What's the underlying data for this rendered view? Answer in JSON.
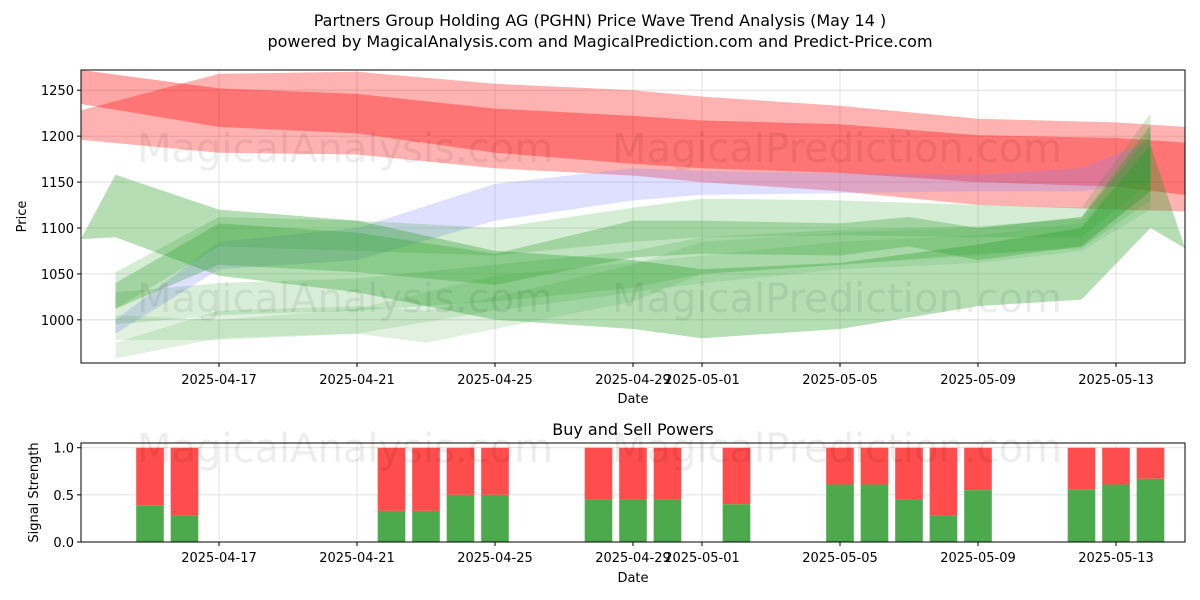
{
  "title_line1": "Partners Group Holding AG (PGHN) Price Wave Trend Analysis (May 14 )",
  "title_line2": "powered by MagicalAnalysis.com and MagicalPrediction.com and Predict-Price.com",
  "watermarks": [
    "MagicalAnalysis.com",
    "MagicalPrediction.com"
  ],
  "colors": {
    "red": "#ff0000",
    "green": "#2ca02c",
    "blue": "#8080ff",
    "buy": "#4caa4c",
    "sell": "#ff4c4c",
    "grid": "#d9d9d9"
  },
  "chart_data": [
    {
      "type": "area",
      "name": "price-wave-chart",
      "title": "",
      "xlabel": "Date",
      "ylabel": "Price",
      "xlim": [
        "2025-04-13",
        "2025-05-15"
      ],
      "ylim": [
        953,
        1272
      ],
      "x_ticks": [
        "2025-04-17",
        "2025-04-21",
        "2025-04-25",
        "2025-04-29",
        "2025-05-01",
        "2025-05-05",
        "2025-05-09",
        "2025-05-13"
      ],
      "y_ticks": [
        1000,
        1050,
        1100,
        1150,
        1200,
        1250
      ],
      "grid": true,
      "bands": [
        {
          "color": "red",
          "opacity": 0.3,
          "points": [
            [
              "2025-04-13",
              1228,
              1196
            ],
            [
              "2025-04-17",
              1268,
              1182
            ],
            [
              "2025-04-21",
              1270,
              1180
            ],
            [
              "2025-04-25",
              1257,
              1165
            ],
            [
              "2025-04-29",
              1250,
              1157
            ],
            [
              "2025-05-01",
              1243,
              1150
            ],
            [
              "2025-05-05",
              1233,
              1140
            ],
            [
              "2025-05-09",
              1219,
              1125
            ],
            [
              "2025-05-13",
              1215,
              1120
            ],
            [
              "2025-05-15",
              1210,
              1118
            ]
          ]
        },
        {
          "color": "red",
          "opacity": 0.35,
          "points": [
            [
              "2025-04-13",
              1272,
              1235
            ],
            [
              "2025-04-17",
              1252,
              1210
            ],
            [
              "2025-04-21",
              1246,
              1203
            ],
            [
              "2025-04-25",
              1230,
              1182
            ],
            [
              "2025-04-29",
              1222,
              1170
            ],
            [
              "2025-05-01",
              1217,
              1165
            ],
            [
              "2025-05-05",
              1213,
              1160
            ],
            [
              "2025-05-09",
              1201,
              1150
            ],
            [
              "2025-05-13",
              1198,
              1145
            ],
            [
              "2025-05-15",
              1193,
              1136
            ]
          ]
        },
        {
          "color": "blue",
          "opacity": 0.25,
          "points": [
            [
              "2025-04-14",
              1000,
              985
            ],
            [
              "2025-04-17",
              1085,
              1055
            ],
            [
              "2025-04-21",
              1100,
              1065
            ],
            [
              "2025-04-25",
              1148,
              1108
            ],
            [
              "2025-04-29",
              1165,
              1130
            ],
            [
              "2025-05-01",
              1162,
              1136
            ],
            [
              "2025-05-05",
              1160,
              1138
            ],
            [
              "2025-05-09",
              1158,
              1140
            ],
            [
              "2025-05-12",
              1165,
              1140
            ],
            [
              "2025-05-14",
              1195,
              1150
            ]
          ]
        },
        {
          "color": "green",
          "opacity": 0.35,
          "points": [
            [
              "2025-04-13",
              1088,
              1088
            ],
            [
              "2025-04-14",
              1158,
              1090
            ],
            [
              "2025-04-17",
              1120,
              1048
            ],
            [
              "2025-04-21",
              1108,
              1030
            ],
            [
              "2025-04-25",
              1075,
              1000
            ],
            [
              "2025-04-29",
              1065,
              990
            ],
            [
              "2025-05-01",
              1055,
              980
            ],
            [
              "2025-05-05",
              1062,
              990
            ],
            [
              "2025-05-09",
              1082,
              1015
            ],
            [
              "2025-05-12",
              1100,
              1022
            ],
            [
              "2025-05-14",
              1190,
              1100
            ],
            [
              "2025-05-15",
              1078,
              1078
            ]
          ]
        },
        {
          "color": "green",
          "opacity": 0.3,
          "points": [
            [
              "2025-04-14",
              1040,
              1012
            ],
            [
              "2025-04-17",
              1105,
              1060
            ],
            [
              "2025-04-21",
              1095,
              1052
            ],
            [
              "2025-04-25",
              1072,
              1038
            ],
            [
              "2025-04-29",
              1108,
              1068
            ],
            [
              "2025-05-01",
              1108,
              1072
            ],
            [
              "2025-05-05",
              1105,
              1070
            ],
            [
              "2025-05-07",
              1112,
              1080
            ],
            [
              "2025-05-09",
              1100,
              1065
            ],
            [
              "2025-05-12",
              1112,
              1080
            ],
            [
              "2025-05-14",
              1212,
              1140
            ]
          ]
        },
        {
          "color": "green",
          "opacity": 0.2,
          "points": [
            [
              "2025-04-14",
              1052,
              1012
            ],
            [
              "2025-04-17",
              1112,
              1080
            ],
            [
              "2025-04-21",
              1108,
              1075
            ],
            [
              "2025-04-25",
              1100,
              1070
            ],
            [
              "2025-04-29",
              1122,
              1085
            ],
            [
              "2025-05-01",
              1132,
              1090
            ],
            [
              "2025-05-05",
              1130,
              1092
            ],
            [
              "2025-05-09",
              1125,
              1090
            ],
            [
              "2025-05-12",
              1122,
              1090
            ],
            [
              "2025-05-14",
              1225,
              1150
            ]
          ]
        },
        {
          "color": "green",
          "opacity": 0.18,
          "points": [
            [
              "2025-04-14",
              1030,
              995
            ],
            [
              "2025-04-17",
              1040,
              1005
            ],
            [
              "2025-04-21",
              1045,
              1010
            ],
            [
              "2025-04-25",
              1060,
              1020
            ],
            [
              "2025-04-29",
              1075,
              1035
            ],
            [
              "2025-05-01",
              1090,
              1050
            ],
            [
              "2025-05-05",
              1098,
              1060
            ],
            [
              "2025-05-09",
              1102,
              1072
            ],
            [
              "2025-05-12",
              1110,
              1078
            ],
            [
              "2025-05-14",
              1205,
              1130
            ]
          ]
        },
        {
          "color": "green",
          "opacity": 0.15,
          "points": [
            [
              "2025-04-14",
              975,
              958
            ],
            [
              "2025-04-17",
              1010,
              980
            ],
            [
              "2025-04-21",
              1015,
              985
            ],
            [
              "2025-04-23",
              1010,
              975
            ],
            [
              "2025-04-25",
              1025,
              990
            ],
            [
              "2025-04-29",
              1060,
              1020
            ],
            [
              "2025-05-01",
              1085,
              1050
            ],
            [
              "2025-05-05",
              1095,
              1060
            ],
            [
              "2025-05-09",
              1100,
              1070
            ],
            [
              "2025-05-12",
              1112,
              1080
            ],
            [
              "2025-05-14",
              1200,
              1140
            ]
          ]
        },
        {
          "color": "green",
          "opacity": 0.15,
          "points": [
            [
              "2025-04-14",
              1005,
              978
            ],
            [
              "2025-04-17",
              1000,
              978
            ],
            [
              "2025-04-21",
              1012,
              985
            ],
            [
              "2025-04-25",
              1048,
              1010
            ],
            [
              "2025-04-29",
              1062,
              1030
            ],
            [
              "2025-05-01",
              1070,
              1040
            ],
            [
              "2025-05-05",
              1085,
              1055
            ],
            [
              "2025-05-09",
              1092,
              1062
            ],
            [
              "2025-05-12",
              1105,
              1075
            ],
            [
              "2025-05-14",
              1190,
              1120
            ]
          ]
        }
      ]
    },
    {
      "type": "bar",
      "name": "buy-sell-chart",
      "title": "Buy and Sell Powers",
      "xlabel": "Date",
      "ylabel": "Signal Strength",
      "xlim": [
        "2025-04-13",
        "2025-05-15"
      ],
      "ylim": [
        0,
        1.05
      ],
      "x_ticks": [
        "2025-04-17",
        "2025-04-21",
        "2025-04-25",
        "2025-04-29",
        "2025-05-01",
        "2025-05-05",
        "2025-05-09",
        "2025-05-13"
      ],
      "y_ticks": [
        "0.0",
        "0.5",
        "1.0"
      ],
      "grid": true,
      "series": [
        {
          "name": "Buy",
          "color": "buy"
        },
        {
          "name": "Sell",
          "color": "sell"
        }
      ],
      "categories": [
        "2025-04-15",
        "2025-04-16",
        "2025-04-22",
        "2025-04-23",
        "2025-04-24",
        "2025-04-25",
        "2025-04-28",
        "2025-04-29",
        "2025-04-30",
        "2025-05-02",
        "2025-05-05",
        "2025-05-06",
        "2025-05-07",
        "2025-05-08",
        "2025-05-09",
        "2025-05-12",
        "2025-05-13",
        "2025-05-14"
      ],
      "buy": [
        0.39,
        0.28,
        0.33,
        0.33,
        0.5,
        0.5,
        0.45,
        0.45,
        0.45,
        0.4,
        0.61,
        0.61,
        0.45,
        0.28,
        0.55,
        0.56,
        0.61,
        0.67
      ],
      "total": 1.0
    }
  ]
}
